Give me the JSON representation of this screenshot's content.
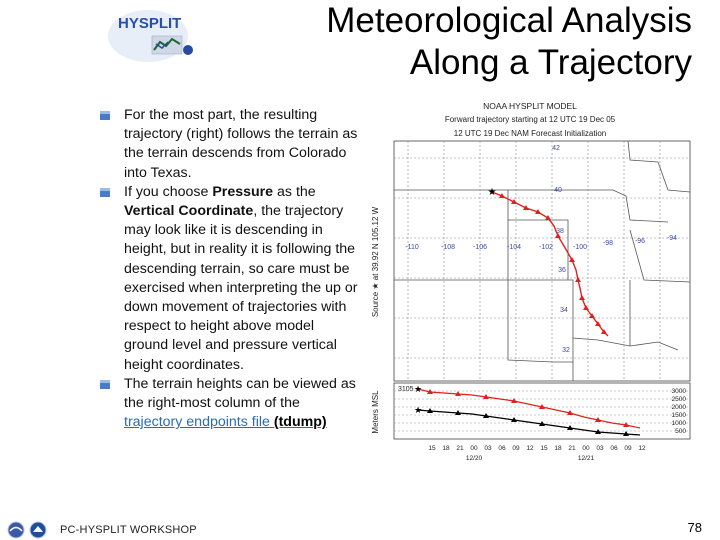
{
  "header": {
    "logo_text": "HYSPLIT",
    "title_line1": "Meteorological Analysis",
    "title_line2": "Along a Trajectory"
  },
  "bullets": {
    "b1": "For the most part, the resulting trajectory (right) follows the terrain as the terrain descends from Colorado into Texas.",
    "b2_pre": "If you choose ",
    "b2_bold1": "Pressure",
    "b2_mid": " as the ",
    "b2_bold2": "Vertical Coordinate",
    "b2_post": ", the trajectory may look like it is descending in height, but in reality it is following the descending terrain, so care must be exercised when interpreting the up or down movement of trajectories with respect to height above model ground level and pressure vertical height coordinates.",
    "b3_pre": "The terrain heights can be viewed as the right-most column of the ",
    "b3_link": "trajectory endpoints file",
    "b3_link_bold": "(tdump)"
  },
  "figure": {
    "title1": "NOAA HYSPLIT MODEL",
    "title2": "Forward trajectory starting at 12 UTC 19 Dec 05",
    "title3": "12 UTC 19 Dec    NAM  Forecast Initialization",
    "side_label": "Source ★ at  39.92 N  105.12 W",
    "lon_labels": [
      "-110",
      "-108",
      "-106",
      "-104",
      "-102",
      "-100",
      "-98",
      "-96",
      "-94"
    ],
    "lat_labels": [
      "42",
      "40",
      "38",
      "36",
      "34",
      "32"
    ],
    "alt_ylabel": "Meters MSL",
    "alt_left_label": "3105",
    "alt_right_labels": [
      "3000",
      "2500",
      "2000",
      "1500",
      "1000",
      "500"
    ],
    "time_labels": [
      "15",
      "18",
      "21",
      "00",
      "03",
      "06",
      "09",
      "12",
      "15",
      "18",
      "21",
      "00",
      "03",
      "06",
      "09",
      "12"
    ],
    "date_labels": [
      "12/20",
      "12/21"
    ],
    "colors": {
      "red": "#e0201e",
      "black": "#000000"
    }
  },
  "footer": {
    "text": "PC-HYSPLIT WORKSHOP",
    "page": "78"
  }
}
